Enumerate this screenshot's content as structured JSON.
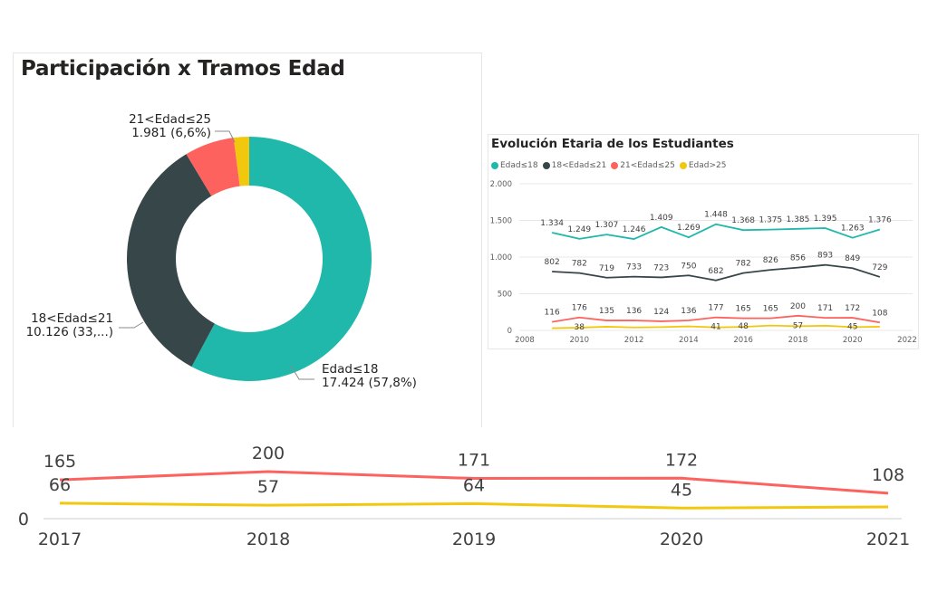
{
  "chart_data": [
    {
      "type": "pie",
      "variant": "donut",
      "title": "Participación x Tramos Edad",
      "slices": [
        {
          "label": "Edad≤18",
          "value": 17424,
          "value_text": "17.424",
          "percent_text": "(57,8%)",
          "color": "#1FB8AB"
        },
        {
          "label": "18<Edad≤21",
          "value": 10126,
          "value_text": "10.126",
          "percent_text": "(33,...)",
          "color": "#374649"
        },
        {
          "label": "21<Edad≤25",
          "value": 1981,
          "value_text": "1.981",
          "percent_text": "(6,6%)",
          "color": "#FD625E"
        },
        {
          "label": "Edad>25",
          "value": 614,
          "value_text": "",
          "percent_text": "",
          "color": "#F2C80F"
        }
      ]
    },
    {
      "type": "line",
      "title": "Evolución Etaria de los Estudiantes",
      "legend_position": "top-left",
      "x": [
        2009,
        2010,
        2011,
        2012,
        2013,
        2014,
        2015,
        2016,
        2017,
        2018,
        2019,
        2020,
        2021
      ],
      "xlim": [
        2008,
        2022
      ],
      "xticks": [
        "2008",
        "2010",
        "2012",
        "2014",
        "2016",
        "2018",
        "2020",
        "2022"
      ],
      "ylim": [
        0,
        2000
      ],
      "yticks": [
        "0",
        "500",
        "1.000",
        "1.500",
        "2.000"
      ],
      "grid": true,
      "series": [
        {
          "name": "Edad≤18",
          "color": "#1FB8AB",
          "values": [
            1334,
            1249,
            1307,
            1246,
            1409,
            1269,
            1448,
            1368,
            1375,
            1385,
            1395,
            1263,
            1376
          ],
          "labels": [
            "1.334",
            "1.249",
            "1.307",
            "1.246",
            "1.409",
            "1.269",
            "1.448",
            "1.368",
            "1.375",
            "1.385",
            "1.395",
            "1.263",
            "1.376"
          ]
        },
        {
          "name": "18<Edad≤21",
          "color": "#374649",
          "values": [
            802,
            782,
            719,
            733,
            723,
            750,
            682,
            782,
            826,
            856,
            893,
            849,
            729
          ],
          "labels": [
            "802",
            "782",
            "719",
            "733",
            "723",
            "750",
            "682",
            "782",
            "826",
            "856",
            "893",
            "849",
            "729"
          ]
        },
        {
          "name": "21<Edad≤25",
          "color": "#FD625E",
          "values": [
            116,
            176,
            135,
            136,
            124,
            136,
            177,
            165,
            165,
            200,
            171,
            172,
            108
          ],
          "labels": [
            "116",
            "176",
            "135",
            "136",
            "124",
            "136",
            "177",
            "165",
            "165",
            "200",
            "171",
            "172",
            "108"
          ]
        },
        {
          "name": "Edad>25",
          "color": "#F2C80F",
          "values": [
            30,
            38,
            50,
            40,
            45,
            55,
            41,
            48,
            66,
            57,
            64,
            45,
            50
          ],
          "labels": [
            "",
            "38",
            "",
            "",
            "",
            "",
            "41",
            "48",
            "",
            "57",
            "",
            "45",
            ""
          ]
        }
      ]
    },
    {
      "type": "line",
      "title": "",
      "x": [
        2017,
        2018,
        2019,
        2020,
        2021
      ],
      "xticks": [
        "2017",
        "2018",
        "2019",
        "2020",
        "2021"
      ],
      "yticks": [
        "0"
      ],
      "ylim": [
        0,
        230
      ],
      "series": [
        {
          "name": "21<Edad≤25",
          "color": "#FD625E",
          "values": [
            165,
            200,
            171,
            172,
            108
          ],
          "labels": [
            "165",
            "200",
            "171",
            "172",
            "108"
          ]
        },
        {
          "name": "Edad>25",
          "color": "#F2C80F",
          "values": [
            66,
            57,
            64,
            45,
            50
          ],
          "labels": [
            "66",
            "57",
            "64",
            "45",
            ""
          ]
        }
      ]
    }
  ]
}
